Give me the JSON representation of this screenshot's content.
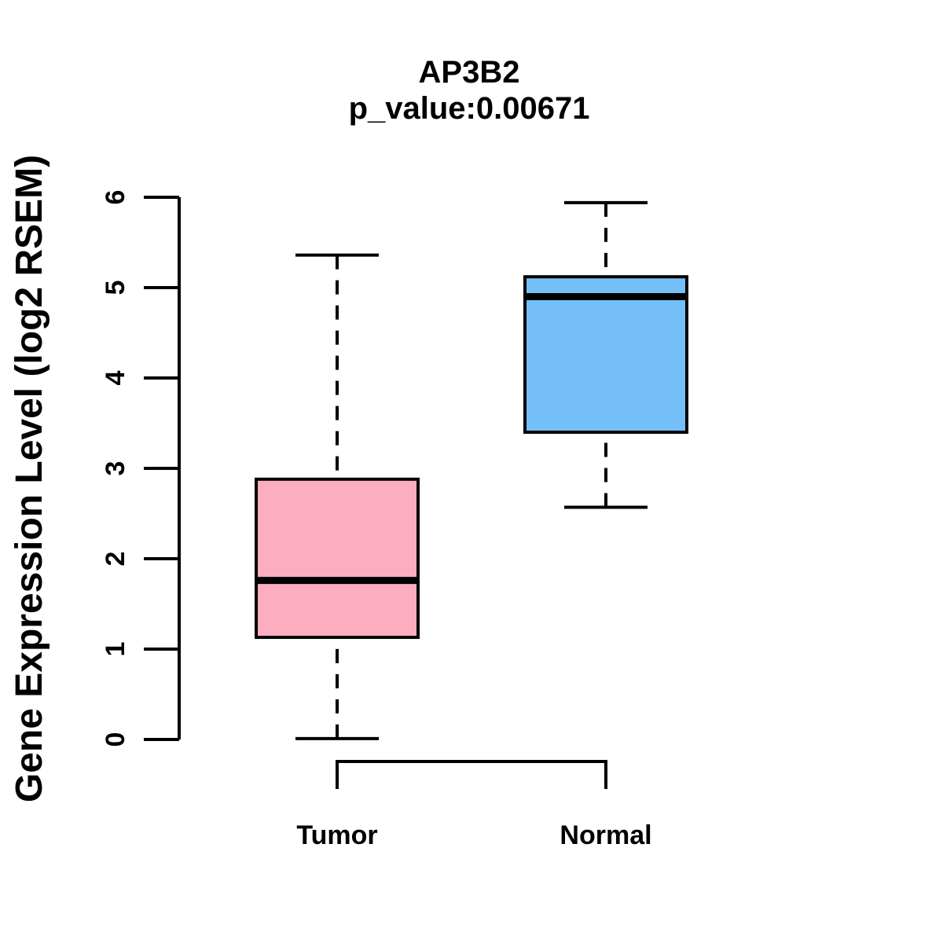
{
  "chart": {
    "title": "AP3B2",
    "subtitle": "p_value:0.00671",
    "ylabel": "Gene Expression Level (log2 RSEM)"
  },
  "chart_data": {
    "type": "boxplot",
    "title": "AP3B2",
    "subtitle": "p_value:0.00671",
    "xlabel": "",
    "ylabel": "Gene Expression Level (log2 RSEM)",
    "ylim": [
      0,
      6
    ],
    "yticks": [
      0,
      1,
      2,
      3,
      4,
      5,
      6
    ],
    "grid": false,
    "legend": "none",
    "orientation": "vertical",
    "categories": [
      "Tumor",
      "Normal"
    ],
    "series": [
      {
        "name": "Tumor",
        "fill_color": "#FCAEC0",
        "min": 0.01,
        "q1": 1.13,
        "median": 1.76,
        "q3": 2.88,
        "max": 5.36,
        "outliers": []
      },
      {
        "name": "Normal",
        "fill_color": "#74BFF7",
        "min": 2.57,
        "q1": 3.4,
        "median": 4.9,
        "q3": 5.12,
        "max": 5.94,
        "outliers": []
      }
    ],
    "stroke_color": "#000000",
    "background_color": "#FFFFFF",
    "whisker_style": "dashed"
  }
}
